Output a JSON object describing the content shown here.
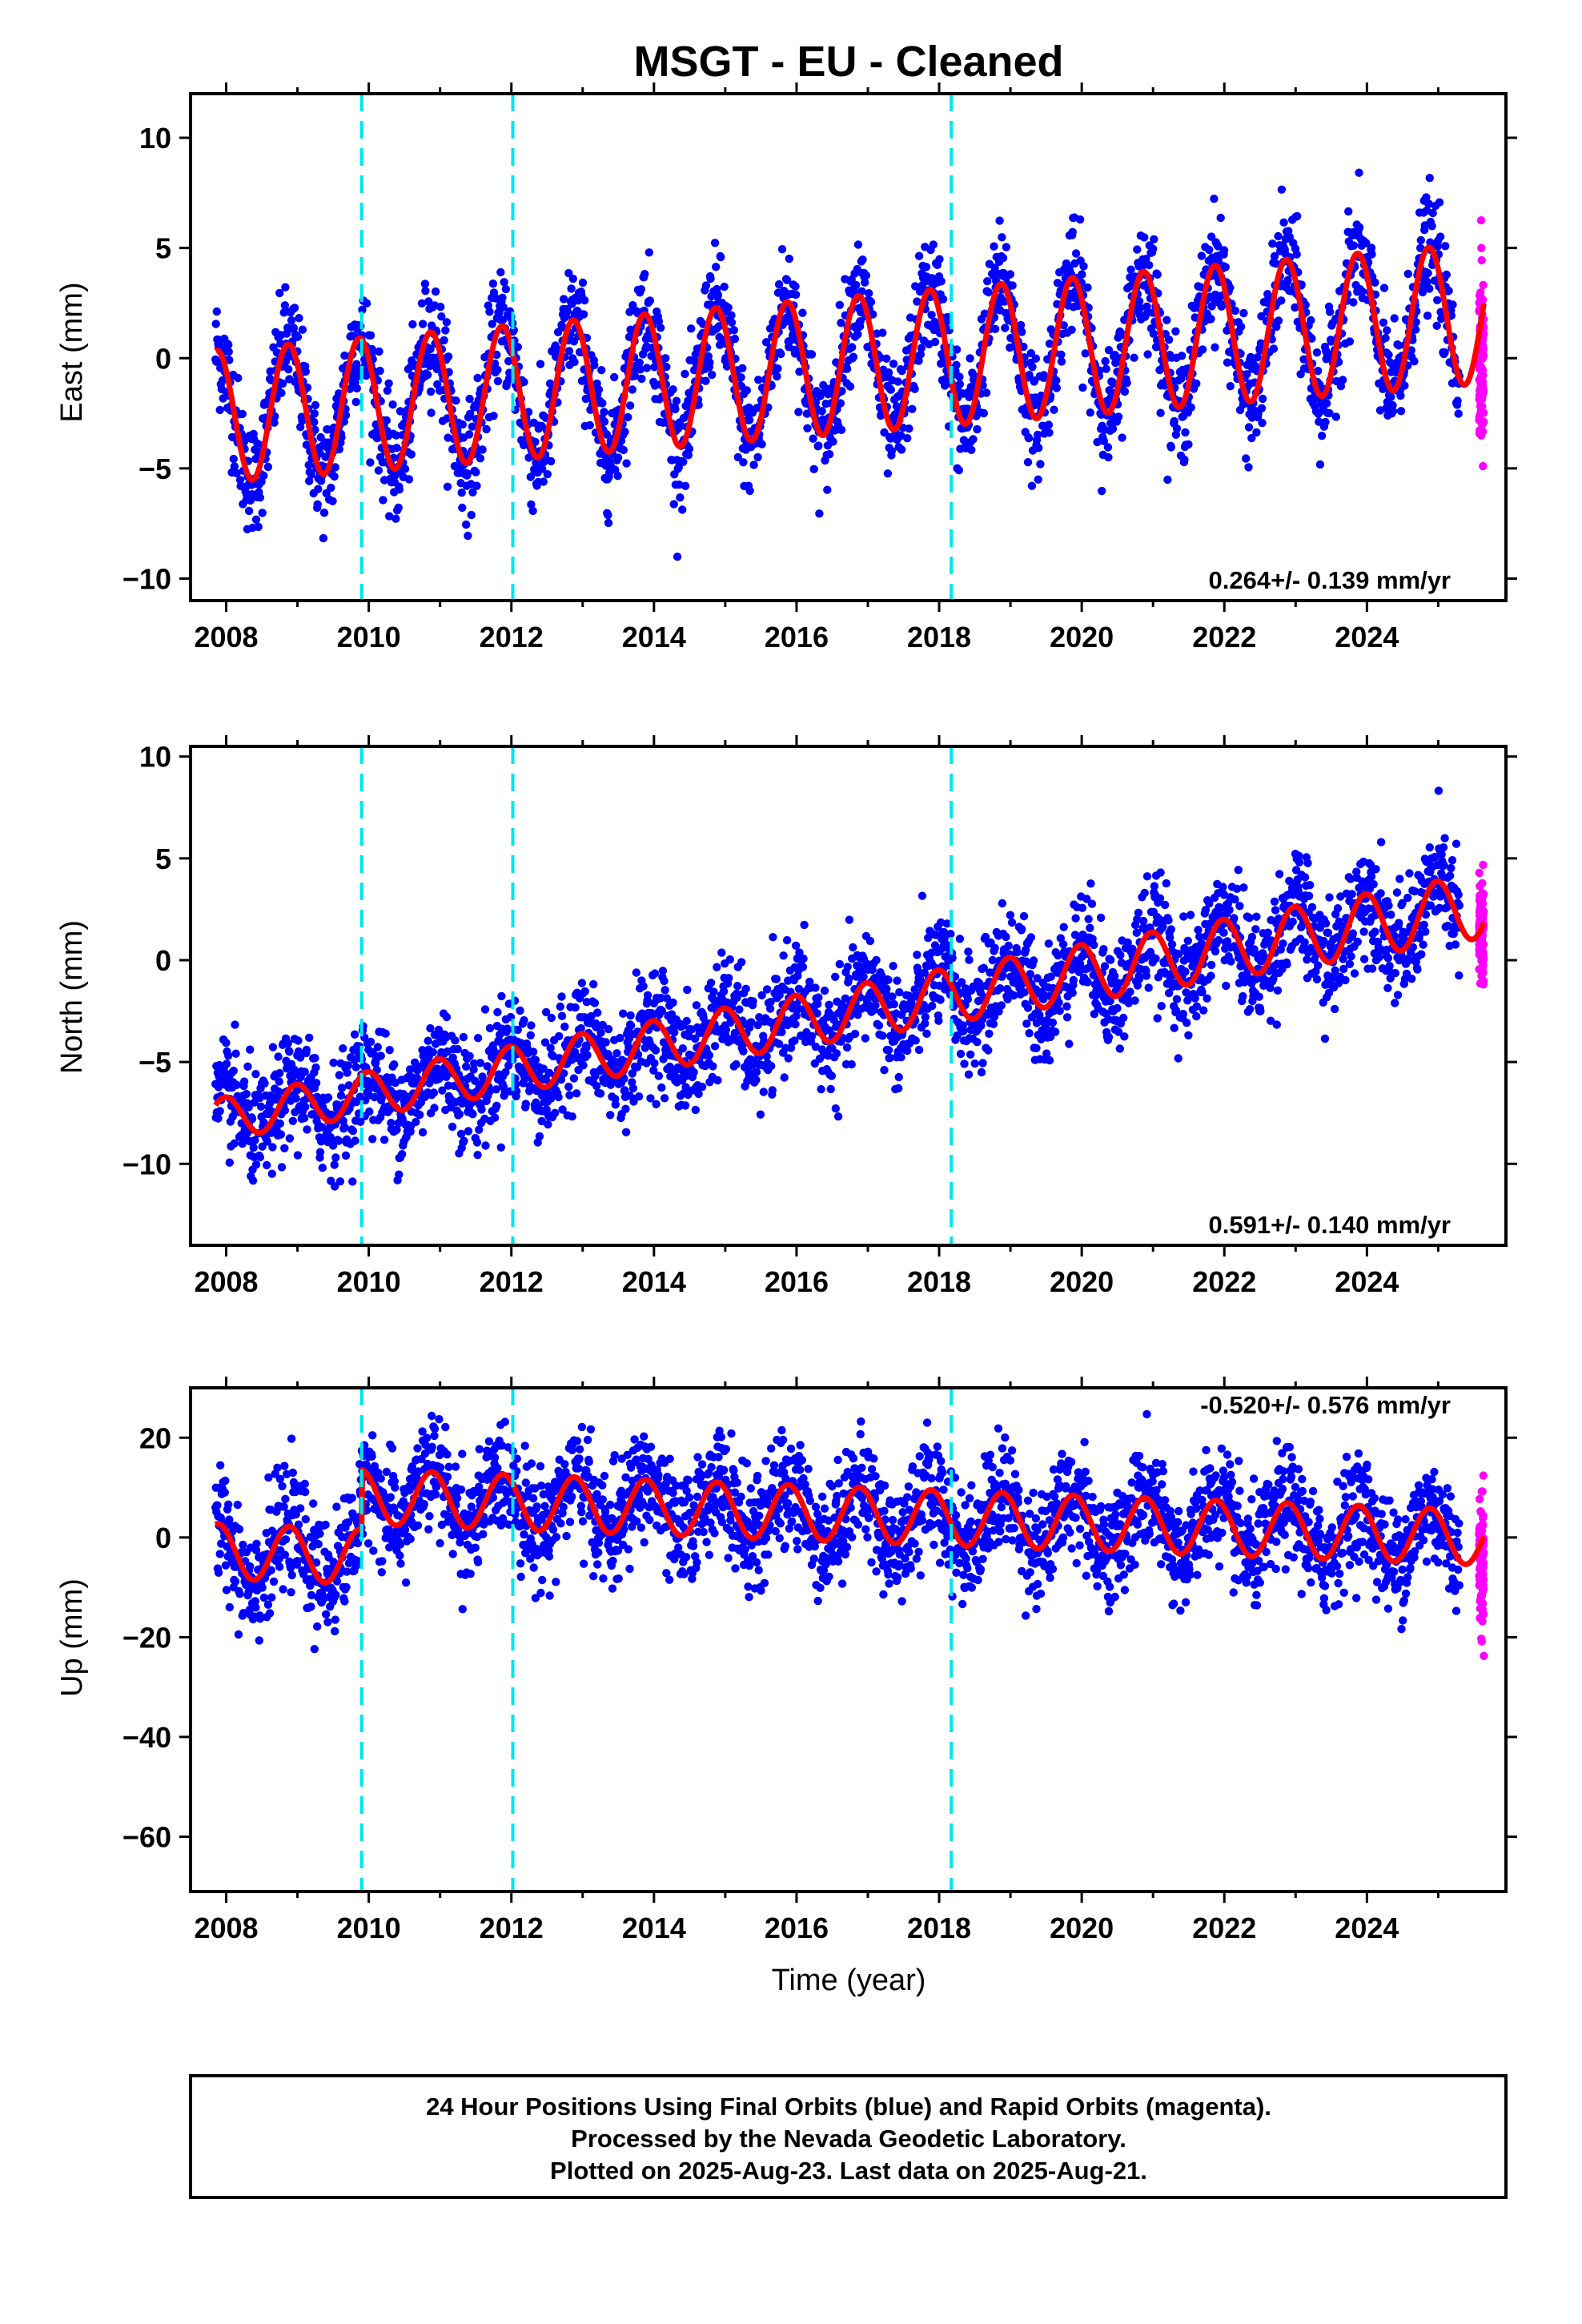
{
  "title": "MSGT  - EU - Cleaned",
  "xlabel": "Time (year)",
  "footer": {
    "lines": [
      "24 Hour Positions Using Final Orbits (blue) and Rapid Orbits (magenta).",
      "Processed by the Nevada Geodetic Laboratory.",
      "Plotted on 2025-Aug-23. Last data on 2025-Aug-21."
    ]
  },
  "colors": {
    "final_orbits": "#0000ff",
    "rapid_orbits": "#ff00ff",
    "model_fit": "#ff0000",
    "events": "#00e5ee",
    "frame": "#000000"
  },
  "chart_data": [
    {
      "type": "scatter",
      "component": "east",
      "ylabel": "East (mm)",
      "rate_label": "0.264+/- 0.139 mm/yr",
      "xlim": [
        2007.5,
        2025.95
      ],
      "ylim": [
        -11,
        12
      ],
      "yticks": [
        -10,
        -5,
        0,
        5,
        10
      ],
      "xticks": [
        2008,
        2010,
        2012,
        2014,
        2016,
        2018,
        2020,
        2022,
        2024
      ],
      "grid": false,
      "event_lines": [
        2009.9,
        2012.02,
        2018.17
      ],
      "data_range": [
        2007.85,
        2025.3
      ],
      "rapid_range": [
        2025.3,
        2025.64
      ],
      "model": {
        "offset": -0.5,
        "trend": 0.264,
        "amp_start": 3.0,
        "amp_end": 3.2,
        "amp_phase": 2.4
      },
      "series": [
        {
          "name": "Final Orbits",
          "color": "#0000ff"
        },
        {
          "name": "Rapid Orbits",
          "color": "#ff00ff"
        }
      ]
    },
    {
      "type": "scatter",
      "component": "north",
      "ylabel": "North (mm)",
      "rate_label": "0.591+/- 0.140 mm/yr",
      "xlim": [
        2007.5,
        2025.95
      ],
      "ylim": [
        -14,
        10.5
      ],
      "yticks": [
        -10,
        -5,
        0,
        5,
        10
      ],
      "xticks": [
        2008,
        2010,
        2012,
        2014,
        2016,
        2018,
        2020,
        2022,
        2024
      ],
      "grid": false,
      "event_lines": [
        2009.9,
        2012.02,
        2018.17
      ],
      "data_range": [
        2007.85,
        2025.3
      ],
      "rapid_range": [
        2025.3,
        2025.64
      ],
      "model": {
        "offset": -3.0,
        "trend": 0.591,
        "amp_start": 1.0,
        "amp_end": 1.6,
        "amp_phase": 1.7
      },
      "series": [
        {
          "name": "Final Orbits",
          "color": "#0000ff"
        },
        {
          "name": "Rapid Orbits",
          "color": "#ff00ff"
        }
      ]
    },
    {
      "type": "scatter",
      "component": "up",
      "ylabel": "Up (mm)",
      "rate_label": "-0.520+/- 0.576 mm/yr",
      "xlim": [
        2007.5,
        2025.95
      ],
      "ylim": [
        -71,
        30
      ],
      "yticks": [
        -60,
        -40,
        -20,
        0,
        20
      ],
      "xticks": [
        2008,
        2010,
        2012,
        2014,
        2016,
        2018,
        2020,
        2022,
        2024
      ],
      "grid": false,
      "event_lines": [
        2009.9,
        2012.02,
        2018.17
      ],
      "data_range": [
        2007.85,
        2025.3
      ],
      "rapid_range": [
        2025.3,
        2025.64
      ],
      "model": {
        "offset": 5.0,
        "trend": -0.52,
        "amp_start": 5.5,
        "amp_end": 5.5,
        "amp_phase": 2.3,
        "pre_event_offset": -12.0
      },
      "series": [
        {
          "name": "Final Orbits",
          "color": "#0000ff"
        },
        {
          "name": "Rapid Orbits",
          "color": "#ff00ff"
        }
      ]
    }
  ]
}
